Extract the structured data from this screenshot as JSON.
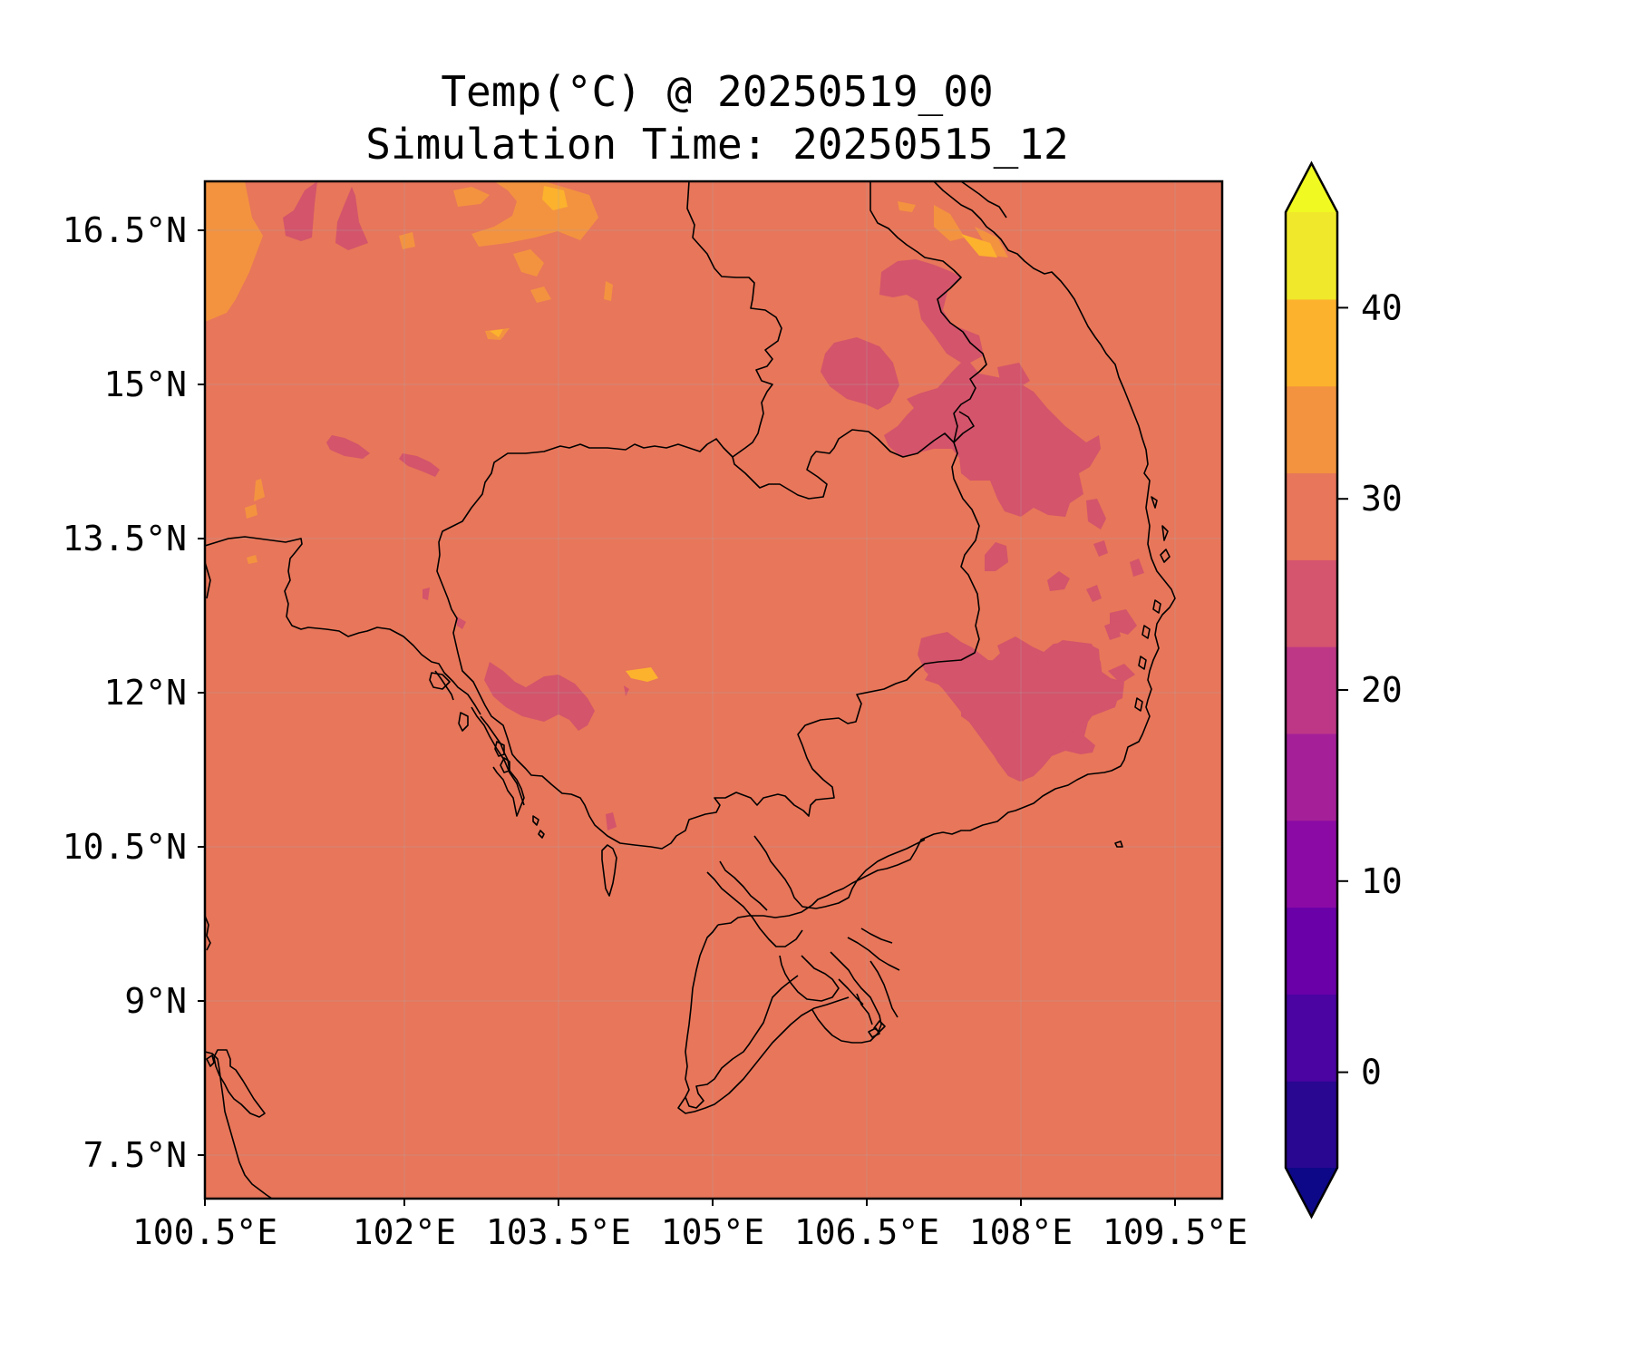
{
  "title": {
    "line1": "Temp(°C) @ 20250519_00",
    "line2": "Simulation Time: 20250515_12"
  },
  "map": {
    "lon_ticks": [
      "100.5°E",
      "102°E",
      "103.5°E",
      "105°E",
      "106.5°E",
      "108°E",
      "109.5°E"
    ],
    "lat_ticks": [
      "16.5°N",
      "15°N",
      "13.5°N",
      "12°N",
      "10.5°N",
      "9°N",
      "7.5°N"
    ],
    "background_color": "#e8765a",
    "warm_color": "#f39340",
    "hot_color": "#fcb22d",
    "cool_color": "#d3546b",
    "coastline_color": "#000000"
  },
  "colorbar": {
    "tick_labels": [
      "40",
      "30",
      "20",
      "10",
      "0"
    ],
    "min": -5,
    "max": 45,
    "step": 5,
    "extend": "both",
    "colors": [
      "#2a0791",
      "#4b03a1",
      "#6a00a8",
      "#8b0aa5",
      "#a51f99",
      "#bd3786",
      "#d5546e",
      "#e8765a",
      "#f39340",
      "#fcb22d",
      "#f0e92b"
    ],
    "under_color": "#0d0887",
    "over_color": "#f0f921"
  }
}
